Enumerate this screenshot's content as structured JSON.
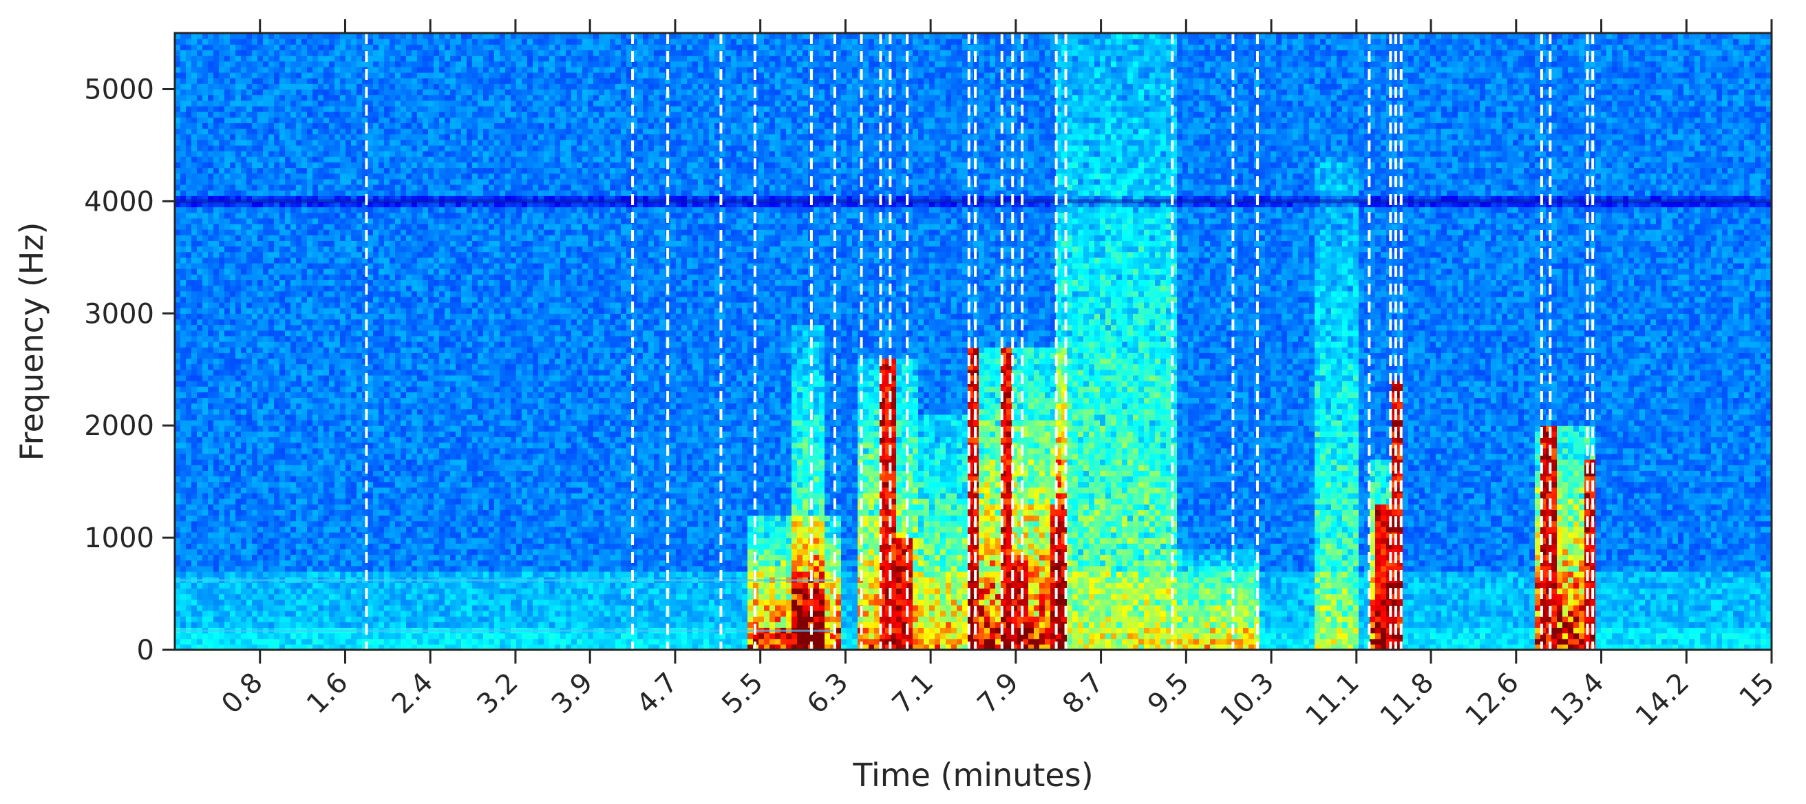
{
  "chart_data": {
    "type": "heatmap",
    "subtype": "spectrogram",
    "title": "",
    "xlabel": "Time (minutes)",
    "ylabel": "Frequency (Hz)",
    "xlim": [
      0,
      15
    ],
    "ylim": [
      0,
      5500
    ],
    "x_ticks": [
      {
        "value": 0.8,
        "label": "0.8"
      },
      {
        "value": 1.6,
        "label": "1.6"
      },
      {
        "value": 2.4,
        "label": "2.4"
      },
      {
        "value": 3.2,
        "label": "3.2"
      },
      {
        "value": 3.9,
        "label": "3.9"
      },
      {
        "value": 4.7,
        "label": "4.7"
      },
      {
        "value": 5.5,
        "label": "5.5"
      },
      {
        "value": 6.3,
        "label": "6.3"
      },
      {
        "value": 7.1,
        "label": "7.1"
      },
      {
        "value": 7.9,
        "label": "7.9"
      },
      {
        "value": 8.7,
        "label": "8.7"
      },
      {
        "value": 9.5,
        "label": "9.5"
      },
      {
        "value": 10.3,
        "label": "10.3"
      },
      {
        "value": 11.1,
        "label": "11.1"
      },
      {
        "value": 11.8,
        "label": "11.8"
      },
      {
        "value": 12.6,
        "label": "12.6"
      },
      {
        "value": 13.4,
        "label": "13.4"
      },
      {
        "value": 14.2,
        "label": "14.2"
      },
      {
        "value": 15.0,
        "label": "15"
      }
    ],
    "y_ticks": [
      {
        "value": 0,
        "label": "0"
      },
      {
        "value": 1000,
        "label": "1000"
      },
      {
        "value": 2000,
        "label": "2000"
      },
      {
        "value": 3000,
        "label": "3000"
      },
      {
        "value": 4000,
        "label": "4000"
      },
      {
        "value": 5000,
        "label": "5000"
      }
    ],
    "colormap": "jet",
    "grid": false,
    "background_color": "#1a3fd6",
    "boundary_line_color": "#ffffff",
    "segment_boundaries_minutes": [
      1.8,
      4.3,
      4.63,
      5.13,
      5.45,
      5.98,
      6.2,
      6.45,
      6.63,
      6.72,
      6.88,
      7.46,
      7.52,
      7.77,
      7.87,
      7.96,
      8.28,
      8.37,
      9.37,
      9.94,
      10.17,
      11.22,
      11.42,
      11.47,
      11.52,
      12.84,
      12.92,
      13.27,
      13.32
    ],
    "energy_regions": [
      {
        "t0": 5.4,
        "t1": 6.25,
        "fmax": 1200,
        "level": 0.7
      },
      {
        "t0": 5.8,
        "t1": 6.1,
        "fmax": 2900,
        "level": 0.45
      },
      {
        "t0": 6.4,
        "t1": 7.0,
        "fmax": 2600,
        "level": 0.6
      },
      {
        "t0": 7.0,
        "t1": 7.5,
        "fmax": 2100,
        "level": 0.5
      },
      {
        "t0": 7.45,
        "t1": 8.4,
        "fmax": 2700,
        "level": 0.75
      },
      {
        "t0": 8.3,
        "t1": 9.4,
        "fmax": 5500,
        "level": 0.35
      },
      {
        "t0": 9.4,
        "t1": 10.2,
        "fmax": 900,
        "level": 0.45
      },
      {
        "t0": 10.7,
        "t1": 11.1,
        "fmax": 4400,
        "level": 0.3
      },
      {
        "t0": 11.2,
        "t1": 11.5,
        "fmax": 1700,
        "level": 0.8
      },
      {
        "t0": 12.8,
        "t1": 13.35,
        "fmax": 2000,
        "level": 0.8
      }
    ],
    "intense_bands": [
      {
        "t0": 6.65,
        "t1": 6.75,
        "fmax": 2600
      },
      {
        "t0": 6.82,
        "t1": 6.9,
        "fmax": 1000
      },
      {
        "t0": 7.46,
        "t1": 7.54,
        "fmax": 2700
      },
      {
        "t0": 7.77,
        "t1": 7.83,
        "fmax": 2700
      },
      {
        "t0": 7.87,
        "t1": 7.97,
        "fmax": 800
      },
      {
        "t0": 8.28,
        "t1": 8.36,
        "fmax": 1300
      },
      {
        "t0": 11.3,
        "t1": 11.4,
        "fmax": 1300
      },
      {
        "t0": 11.45,
        "t1": 11.52,
        "fmax": 2400
      },
      {
        "t0": 12.86,
        "t1": 12.94,
        "fmax": 2000
      },
      {
        "t0": 13.28,
        "t1": 13.32,
        "fmax": 1700
      }
    ],
    "horizontal_lines_hz": [
      170,
      620,
      4000
    ]
  }
}
